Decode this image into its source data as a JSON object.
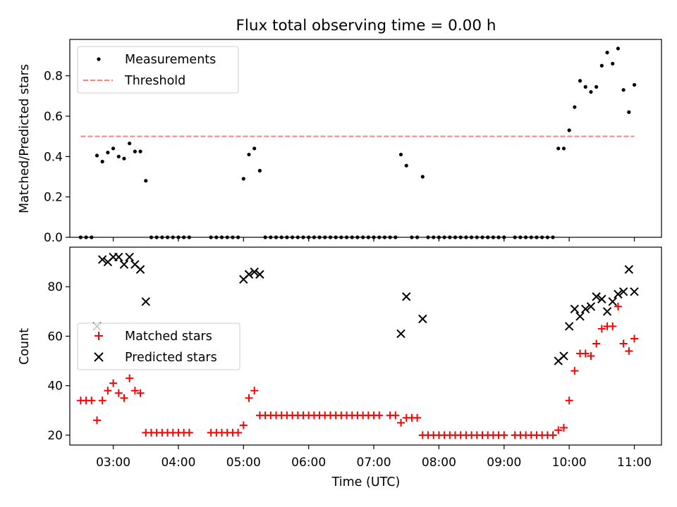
{
  "chart_data": [
    {
      "type": "scatter",
      "title": "Flux total observing time = 0.00 h",
      "xlabel": "",
      "ylabel": "Matched/Predicted stars",
      "xlim": [
        "02:20",
        "11:25"
      ],
      "ylim": [
        0,
        0.98
      ],
      "yticks": [
        0.0,
        0.2,
        0.4,
        0.6,
        0.8
      ],
      "ytick_labels": [
        "0.0",
        "0.2",
        "0.4",
        "0.6",
        "0.8"
      ],
      "xtick_labels_shown": false,
      "legend_position": "upper left",
      "series": [
        {
          "name": "Measurements",
          "style": "dot",
          "color": "#000000",
          "points": [
            [
              "02:30",
              0
            ],
            [
              "02:35",
              0
            ],
            [
              "02:40",
              0
            ],
            [
              "02:45",
              0.405
            ],
            [
              "02:50",
              0.375
            ],
            [
              "02:55",
              0.42
            ],
            [
              "03:00",
              0.44
            ],
            [
              "03:05",
              0.4
            ],
            [
              "03:10",
              0.39
            ],
            [
              "03:15",
              0.465
            ],
            [
              "03:20",
              0.425
            ],
            [
              "03:25",
              0.425
            ],
            [
              "03:30",
              0.28
            ],
            [
              "03:35",
              0
            ],
            [
              "03:40",
              0
            ],
            [
              "03:45",
              0
            ],
            [
              "03:50",
              0
            ],
            [
              "03:55",
              0
            ],
            [
              "04:00",
              0
            ],
            [
              "04:05",
              0
            ],
            [
              "04:10",
              0
            ],
            [
              "04:30",
              0
            ],
            [
              "04:35",
              0
            ],
            [
              "04:40",
              0
            ],
            [
              "04:45",
              0
            ],
            [
              "04:50",
              0
            ],
            [
              "04:55",
              0
            ],
            [
              "05:00",
              0.29
            ],
            [
              "05:05",
              0.41
            ],
            [
              "05:10",
              0.44
            ],
            [
              "05:15",
              0.33
            ],
            [
              "05:20",
              0
            ],
            [
              "05:25",
              0
            ],
            [
              "05:30",
              0
            ],
            [
              "05:35",
              0
            ],
            [
              "05:40",
              0
            ],
            [
              "05:45",
              0
            ],
            [
              "05:50",
              0
            ],
            [
              "05:55",
              0
            ],
            [
              "06:00",
              0
            ],
            [
              "06:05",
              0
            ],
            [
              "06:10",
              0
            ],
            [
              "06:15",
              0
            ],
            [
              "06:20",
              0
            ],
            [
              "06:25",
              0
            ],
            [
              "06:30",
              0
            ],
            [
              "06:35",
              0
            ],
            [
              "06:40",
              0
            ],
            [
              "06:45",
              0
            ],
            [
              "06:50",
              0
            ],
            [
              "06:55",
              0
            ],
            [
              "07:00",
              0
            ],
            [
              "07:05",
              0
            ],
            [
              "07:10",
              0
            ],
            [
              "07:15",
              0
            ],
            [
              "07:20",
              0
            ],
            [
              "07:25",
              0.41
            ],
            [
              "07:30",
              0.355
            ],
            [
              "07:35",
              0
            ],
            [
              "07:40",
              0
            ],
            [
              "07:45",
              0.3
            ],
            [
              "07:50",
              0
            ],
            [
              "07:55",
              0
            ],
            [
              "08:00",
              0
            ],
            [
              "08:05",
              0
            ],
            [
              "08:10",
              0
            ],
            [
              "08:15",
              0
            ],
            [
              "08:20",
              0
            ],
            [
              "08:25",
              0
            ],
            [
              "08:30",
              0
            ],
            [
              "08:35",
              0
            ],
            [
              "08:40",
              0
            ],
            [
              "08:45",
              0
            ],
            [
              "08:50",
              0
            ],
            [
              "08:55",
              0
            ],
            [
              "09:00",
              0
            ],
            [
              "09:10",
              0
            ],
            [
              "09:15",
              0
            ],
            [
              "09:20",
              0
            ],
            [
              "09:25",
              0
            ],
            [
              "09:30",
              0
            ],
            [
              "09:35",
              0
            ],
            [
              "09:40",
              0
            ],
            [
              "09:45",
              0
            ],
            [
              "09:50",
              0.44
            ],
            [
              "09:55",
              0.44
            ],
            [
              "10:00",
              0.53
            ],
            [
              "10:05",
              0.645
            ],
            [
              "10:10",
              0.775
            ],
            [
              "10:15",
              0.745
            ],
            [
              "10:20",
              0.72
            ],
            [
              "10:25",
              0.745
            ],
            [
              "10:30",
              0.85
            ],
            [
              "10:35",
              0.915
            ],
            [
              "10:40",
              0.86
            ],
            [
              "10:45",
              0.935
            ],
            [
              "10:50",
              0.73
            ],
            [
              "10:55",
              0.62
            ],
            [
              "11:00",
              0.755
            ]
          ]
        },
        {
          "name": "Threshold",
          "style": "dashed-line",
          "color": "#ff7f7f",
          "points": [
            [
              "02:30",
              0.5
            ],
            [
              "11:00",
              0.5
            ]
          ]
        }
      ]
    },
    {
      "type": "scatter",
      "title": "",
      "xlabel": "Time (UTC)",
      "ylabel": "Count",
      "xlim": [
        "02:20",
        "11:25"
      ],
      "ylim": [
        16,
        96
      ],
      "yticks": [
        20,
        40,
        60,
        80
      ],
      "ytick_labels": [
        "20",
        "40",
        "60",
        "80"
      ],
      "xticks": [
        "03:00",
        "04:00",
        "05:00",
        "06:00",
        "07:00",
        "08:00",
        "09:00",
        "10:00",
        "11:00"
      ],
      "xtick_labels": [
        "03:00",
        "04:00",
        "05:00",
        "06:00",
        "07:00",
        "08:00",
        "09:00",
        "10:00",
        "11:00"
      ],
      "legend_position": "center left",
      "series": [
        {
          "name": "Matched stars",
          "style": "plus",
          "color": "#ff0000",
          "points": [
            [
              "02:30",
              34
            ],
            [
              "02:35",
              34
            ],
            [
              "02:40",
              34
            ],
            [
              "02:45",
              26
            ],
            [
              "02:50",
              34
            ],
            [
              "02:55",
              38
            ],
            [
              "03:00",
              41
            ],
            [
              "03:05",
              37
            ],
            [
              "03:10",
              35
            ],
            [
              "03:15",
              43
            ],
            [
              "03:20",
              38
            ],
            [
              "03:25",
              37
            ],
            [
              "03:30",
              21
            ],
            [
              "03:35",
              21
            ],
            [
              "03:40",
              21
            ],
            [
              "03:45",
              21
            ],
            [
              "03:50",
              21
            ],
            [
              "03:55",
              21
            ],
            [
              "04:00",
              21
            ],
            [
              "04:05",
              21
            ],
            [
              "04:10",
              21
            ],
            [
              "04:30",
              21
            ],
            [
              "04:35",
              21
            ],
            [
              "04:40",
              21
            ],
            [
              "04:45",
              21
            ],
            [
              "04:50",
              21
            ],
            [
              "04:55",
              21
            ],
            [
              "05:00",
              24
            ],
            [
              "05:05",
              35
            ],
            [
              "05:10",
              38
            ],
            [
              "05:15",
              28
            ],
            [
              "05:20",
              28
            ],
            [
              "05:25",
              28
            ],
            [
              "05:30",
              28
            ],
            [
              "05:35",
              28
            ],
            [
              "05:40",
              28
            ],
            [
              "05:45",
              28
            ],
            [
              "05:50",
              28
            ],
            [
              "05:55",
              28
            ],
            [
              "06:00",
              28
            ],
            [
              "06:05",
              28
            ],
            [
              "06:10",
              28
            ],
            [
              "06:15",
              28
            ],
            [
              "06:20",
              28
            ],
            [
              "06:25",
              28
            ],
            [
              "06:30",
              28
            ],
            [
              "06:35",
              28
            ],
            [
              "06:40",
              28
            ],
            [
              "06:45",
              28
            ],
            [
              "06:50",
              28
            ],
            [
              "06:55",
              28
            ],
            [
              "07:00",
              28
            ],
            [
              "07:05",
              28
            ],
            [
              "07:15",
              28
            ],
            [
              "07:20",
              28
            ],
            [
              "07:25",
              25
            ],
            [
              "07:30",
              27
            ],
            [
              "07:35",
              27
            ],
            [
              "07:40",
              27
            ],
            [
              "07:45",
              20
            ],
            [
              "07:50",
              20
            ],
            [
              "07:55",
              20
            ],
            [
              "08:00",
              20
            ],
            [
              "08:05",
              20
            ],
            [
              "08:10",
              20
            ],
            [
              "08:15",
              20
            ],
            [
              "08:20",
              20
            ],
            [
              "08:25",
              20
            ],
            [
              "08:30",
              20
            ],
            [
              "08:35",
              20
            ],
            [
              "08:40",
              20
            ],
            [
              "08:45",
              20
            ],
            [
              "08:50",
              20
            ],
            [
              "08:55",
              20
            ],
            [
              "09:00",
              20
            ],
            [
              "09:10",
              20
            ],
            [
              "09:15",
              20
            ],
            [
              "09:20",
              20
            ],
            [
              "09:25",
              20
            ],
            [
              "09:30",
              20
            ],
            [
              "09:35",
              20
            ],
            [
              "09:40",
              20
            ],
            [
              "09:45",
              20
            ],
            [
              "09:50",
              22
            ],
            [
              "09:55",
              23
            ],
            [
              "10:00",
              34
            ],
            [
              "10:05",
              46
            ],
            [
              "10:10",
              53
            ],
            [
              "10:15",
              53
            ],
            [
              "10:20",
              52
            ],
            [
              "10:25",
              57
            ],
            [
              "10:30",
              63
            ],
            [
              "10:35",
              64
            ],
            [
              "10:40",
              64
            ],
            [
              "10:45",
              72
            ],
            [
              "10:50",
              57
            ],
            [
              "10:55",
              54
            ],
            [
              "11:00",
              59
            ]
          ]
        },
        {
          "name": "Predicted stars",
          "style": "x",
          "color": "#000000",
          "points": [
            [
              "02:45",
              64
            ],
            [
              "02:50",
              91
            ],
            [
              "02:55",
              90
            ],
            [
              "03:00",
              92
            ],
            [
              "03:05",
              92
            ],
            [
              "03:10",
              89
            ],
            [
              "03:15",
              92
            ],
            [
              "03:20",
              89
            ],
            [
              "03:25",
              87
            ],
            [
              "03:30",
              74
            ],
            [
              "05:00",
              83
            ],
            [
              "05:05",
              85
            ],
            [
              "05:10",
              86
            ],
            [
              "05:15",
              85
            ],
            [
              "07:25",
              61
            ],
            [
              "07:30",
              76
            ],
            [
              "07:45",
              67
            ],
            [
              "09:50",
              50
            ],
            [
              "09:55",
              52
            ],
            [
              "10:00",
              64
            ],
            [
              "10:05",
              71
            ],
            [
              "10:10",
              68
            ],
            [
              "10:15",
              71
            ],
            [
              "10:20",
              72
            ],
            [
              "10:25",
              76
            ],
            [
              "10:30",
              75
            ],
            [
              "10:35",
              70
            ],
            [
              "10:40",
              74
            ],
            [
              "10:45",
              77
            ],
            [
              "10:50",
              78
            ],
            [
              "10:55",
              87
            ],
            [
              "11:00",
              78
            ]
          ]
        }
      ]
    }
  ]
}
